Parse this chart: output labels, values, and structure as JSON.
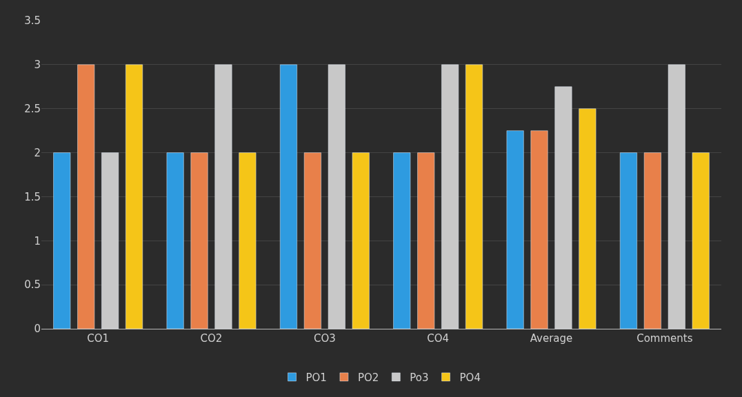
{
  "chart_data": {
    "type": "bar",
    "categories": [
      "CO1",
      "CO2",
      "CO3",
      "CO4",
      "Average",
      "Comments"
    ],
    "series": [
      {
        "name": "PO1",
        "color": "#2e9be0",
        "values": [
          2,
          2,
          3,
          2,
          2.25,
          2
        ]
      },
      {
        "name": "PO2",
        "color": "#e8804a",
        "values": [
          3,
          2,
          2,
          2,
          2.25,
          2
        ]
      },
      {
        "name": "Po3",
        "color": "#c8c8c8",
        "values": [
          2,
          3,
          3,
          3,
          2.75,
          3
        ]
      },
      {
        "name": "PO4",
        "color": "#f5c518",
        "values": [
          3,
          2,
          2,
          3,
          2.5,
          2
        ]
      }
    ],
    "ylim": [
      0,
      3.5
    ],
    "yticks": [
      0,
      0.5,
      1,
      1.5,
      2,
      2.5,
      3,
      3.5
    ],
    "grid": "y",
    "legend": "bottom"
  }
}
